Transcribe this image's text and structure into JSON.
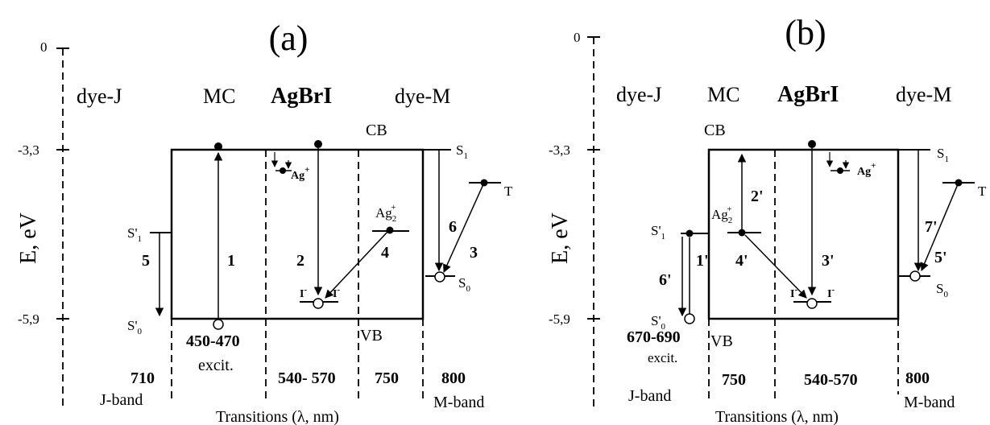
{
  "axis": {
    "ylabel": "E, eV",
    "ticks": [
      "0",
      "-3,3",
      "-5,9"
    ]
  },
  "panel_a": {
    "title": "(a)",
    "headers": [
      "dye-J",
      "MC",
      "AgBrI",
      "dye-M"
    ],
    "cb": "CB",
    "vb": "VB",
    "s1": "S",
    "s1_sub": "1",
    "s0": "S",
    "s0_sub": "0",
    "t": "T",
    "s1p": "S'",
    "s1p_sub": "1",
    "s0p": "S'",
    "s0p_sub": "0",
    "ag": "Ag",
    "ag_sup": "+",
    "ag2": "Ag",
    "ag2_sub": "2",
    "ag2_sup": "+",
    "i_left": "I",
    "i_right": "I",
    "i_sup": "-",
    "transitions": [
      "1",
      "2",
      "3",
      "4",
      "5",
      "6"
    ],
    "excit_range": "450-470",
    "excit": "excit.",
    "wavelengths": [
      "710",
      "540- 570",
      "750",
      "800"
    ],
    "j_band": "J-band",
    "m_band": "M-band",
    "xlabel": "Transitions (λ, nm)"
  },
  "panel_b": {
    "title": "(b)",
    "headers": [
      "dye-J",
      "MC",
      "AgBrI",
      "dye-M"
    ],
    "cb": "CB",
    "vb": "VB",
    "s1": "S",
    "s1_sub": "1",
    "s0": "S",
    "s0_sub": "0",
    "t": "T",
    "s1p": "S'",
    "s1p_sub": "1",
    "s0p": "S'",
    "s0p_sub": "0",
    "ag": "Ag",
    "ag_sup": "+",
    "ag2": "Ag",
    "ag2_sub": "2",
    "ag2_sup": "+",
    "i_left": "I",
    "i_right": "I",
    "i_sup": "-",
    "transitions": [
      "1'",
      "2'",
      "3'",
      "4'",
      "5'",
      "6'",
      "7'"
    ],
    "excit_range": "670-690",
    "excit": "excit.",
    "wavelengths": [
      "750",
      "540-570",
      "800"
    ],
    "j_band": "J-band",
    "m_band": "M-band",
    "xlabel": "Transitions (λ, nm)"
  }
}
